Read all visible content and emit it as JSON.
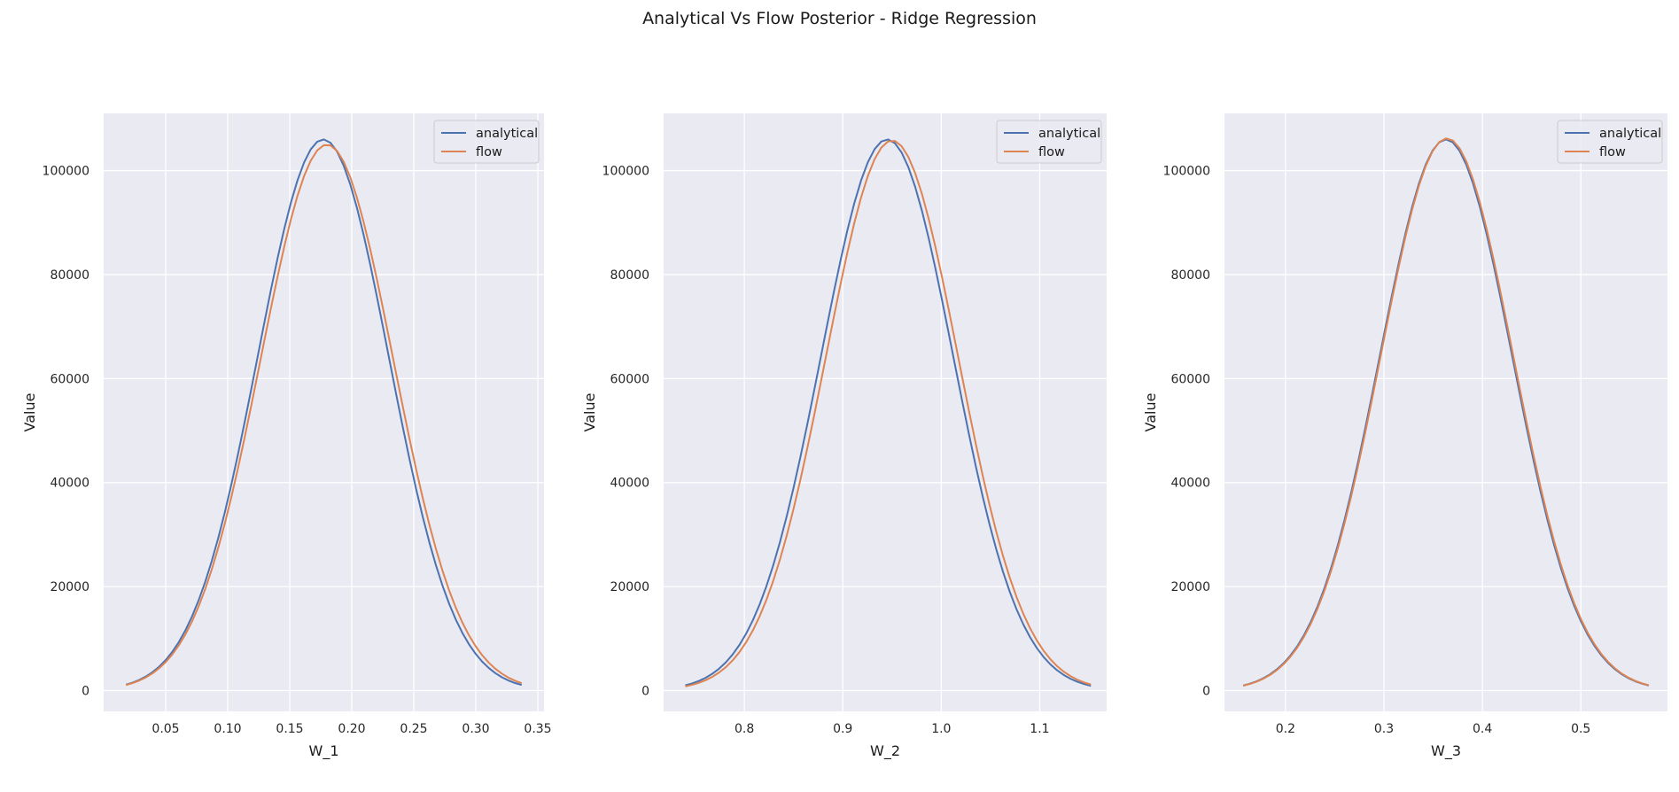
{
  "figure": {
    "title": "Analytical Vs Flow Posterior - Ridge Regression"
  },
  "colors": {
    "background": "#eaeaf2",
    "grid": "#ffffff",
    "analytical": "#4c72b0",
    "flow": "#dd8452"
  },
  "chart_data": [
    {
      "type": "line",
      "title": "",
      "xlabel": "W_1",
      "ylabel": "Value",
      "xlim": [
        -0.0,
        0.355
      ],
      "ylim": [
        -4000,
        111000
      ],
      "xticks": [
        0.05,
        0.1,
        0.15,
        0.2,
        0.25,
        0.3,
        0.35
      ],
      "xtick_labels": [
        "0.05",
        "0.10",
        "0.15",
        "0.20",
        "0.25",
        "0.30",
        "0.35"
      ],
      "yticks": [
        0,
        20000,
        40000,
        60000,
        80000,
        100000
      ],
      "ytick_labels": [
        "0",
        "20000",
        "40000",
        "60000",
        "80000",
        "100000"
      ],
      "grid": true,
      "legend_position": "upper right",
      "series": [
        {
          "name": "analytical",
          "color": "#4c72b0",
          "mean": 0.177,
          "sd": 0.0528,
          "peak": 106000,
          "x_range": [
            0.018,
            0.337
          ]
        },
        {
          "name": "flow",
          "color": "#dd8452",
          "mean": 0.18,
          "sd": 0.0535,
          "peak": 105000,
          "x_range": [
            0.018,
            0.337
          ]
        }
      ]
    },
    {
      "type": "line",
      "title": "",
      "xlabel": "W_2",
      "ylabel": "Value",
      "xlim": [
        0.718,
        1.168
      ],
      "ylim": [
        -4000,
        111000
      ],
      "xticks": [
        0.8,
        0.9,
        1.0,
        1.1
      ],
      "xtick_labels": [
        "0.8",
        "0.9",
        "1.0",
        "1.1"
      ],
      "yticks": [
        0,
        20000,
        40000,
        60000,
        80000,
        100000
      ],
      "ytick_labels": [
        "0",
        "20000",
        "40000",
        "60000",
        "80000",
        "100000"
      ],
      "grid": true,
      "legend_position": "upper right",
      "series": [
        {
          "name": "analytical",
          "color": "#4c72b0",
          "mean": 0.945,
          "sd": 0.0672,
          "peak": 106000,
          "x_range": [
            0.74,
            1.152
          ]
        },
        {
          "name": "flow",
          "color": "#dd8452",
          "mean": 0.95,
          "sd": 0.0672,
          "peak": 105800,
          "x_range": [
            0.74,
            1.152
          ]
        }
      ]
    },
    {
      "type": "line",
      "title": "",
      "xlabel": "W_3",
      "ylabel": "Value",
      "xlim": [
        0.138,
        0.588
      ],
      "ylim": [
        -4000,
        111000
      ],
      "xticks": [
        0.2,
        0.3,
        0.4,
        0.5
      ],
      "xtick_labels": [
        "0.2",
        "0.3",
        "0.4",
        "0.5"
      ],
      "yticks": [
        0,
        20000,
        40000,
        60000,
        80000,
        100000
      ],
      "ytick_labels": [
        "0",
        "20000",
        "40000",
        "60000",
        "80000",
        "100000"
      ],
      "grid": true,
      "legend_position": "upper right",
      "series": [
        {
          "name": "analytical",
          "color": "#4c72b0",
          "mean": 0.363,
          "sd": 0.0673,
          "peak": 106000,
          "x_range": [
            0.157,
            0.569
          ]
        },
        {
          "name": "flow",
          "color": "#dd8452",
          "mean": 0.364,
          "sd": 0.0673,
          "peak": 106200,
          "x_range": [
            0.157,
            0.569
          ]
        }
      ]
    }
  ]
}
